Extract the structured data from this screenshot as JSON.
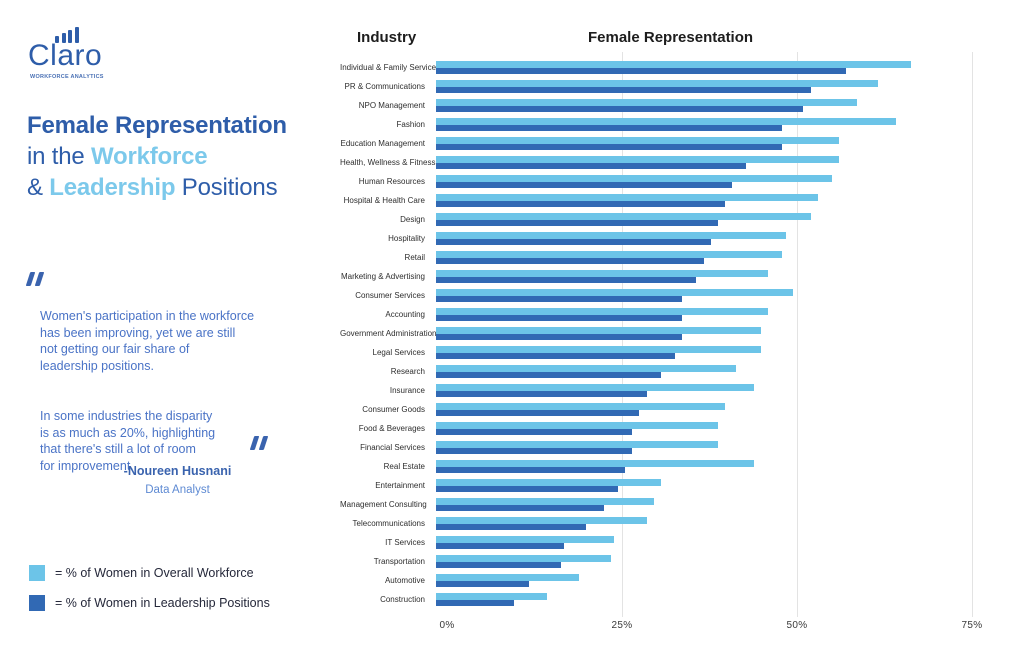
{
  "logo": {
    "name": "Claro",
    "tagline": "WORKFORCE ANALYTICS"
  },
  "title": {
    "line1": "Female Representation",
    "line2_prefix": "in the ",
    "line2_highlight": "Workforce",
    "line3_prefix": "& ",
    "line3_highlight": "Leadership",
    "line3_suffix": " Positions"
  },
  "quote": {
    "paragraph1": "Women's participation in the workforce\nhas been improving, yet we are still\nnot getting our fair share of\nleadership positions.",
    "paragraph2": "In some industries the disparity\nis as much as 20%, highlighting\nthat there's still a lot of room\nfor improvement.",
    "author": "-Noureen Husnani",
    "role": "Data Analyst"
  },
  "legend": [
    {
      "label": "= % of Women in Overall Workforce",
      "color": "#6CC4E8"
    },
    {
      "label": "= % of Women in Leadership Positions",
      "color": "#3169B4"
    }
  ],
  "colors": {
    "dark_blue_text": "#2E5DA9",
    "light_blue_text": "#7CC9EB",
    "quote_blue": "#4A73C6",
    "workforce_bar": "#6CC4E8",
    "leadership_bar": "#3169B4",
    "gridline": "#e3e3e3"
  },
  "chart_data": {
    "type": "bar",
    "orientation": "horizontal",
    "column_header_left": "Industry",
    "column_header_right": "Female Representation",
    "grid": "vertical",
    "legend_position": "bottom-left",
    "x_ticks": [
      "0%",
      "25%",
      "50%",
      "75%"
    ],
    "x_tick_values": [
      0,
      25,
      50,
      75
    ],
    "xlim": [
      0,
      81
    ],
    "categories": [
      "Individual & Family Services",
      "PR & Communications",
      "NPO Management",
      "Fashion",
      "Education Management",
      "Health, Wellness & Fitness",
      "Human Resources",
      "Hospital & Health Care",
      "Design",
      "Hospitality",
      "Retail",
      "Marketing & Advertising",
      "Consumer Services",
      "Accounting",
      "Government Administration",
      "Legal Services",
      "Research",
      "Insurance",
      "Consumer Goods",
      "Food & Beverages",
      "Financial Services",
      "Real Estate",
      "Entertainment",
      "Management Consulting",
      "Telecommunications",
      "IT Services",
      "Transportation",
      "Automotive",
      "Construction"
    ],
    "series": [
      {
        "name": "% of Women in Overall Workforce",
        "color": "#6CC4E8",
        "values": [
          66.5,
          62,
          59,
          64.5,
          56.5,
          56.5,
          55.5,
          53.5,
          52.5,
          49,
          48.5,
          46.5,
          50,
          46.5,
          45.5,
          45.5,
          42,
          44.5,
          40.5,
          39.5,
          39.5,
          44.5,
          31.5,
          30.5,
          29.5,
          25,
          24.5,
          20,
          15.5
        ]
      },
      {
        "name": "% of Women in Leadership Positions",
        "color": "#3169B4",
        "values": [
          57.5,
          52.5,
          51.5,
          48.5,
          48.5,
          43.5,
          41.5,
          40.5,
          39.5,
          38.5,
          37.5,
          36.5,
          34.5,
          34.5,
          34.5,
          33.5,
          31.5,
          29.5,
          28.5,
          27.5,
          27.5,
          26.5,
          25.5,
          23.5,
          21,
          18,
          17.5,
          13,
          11
        ]
      }
    ]
  }
}
